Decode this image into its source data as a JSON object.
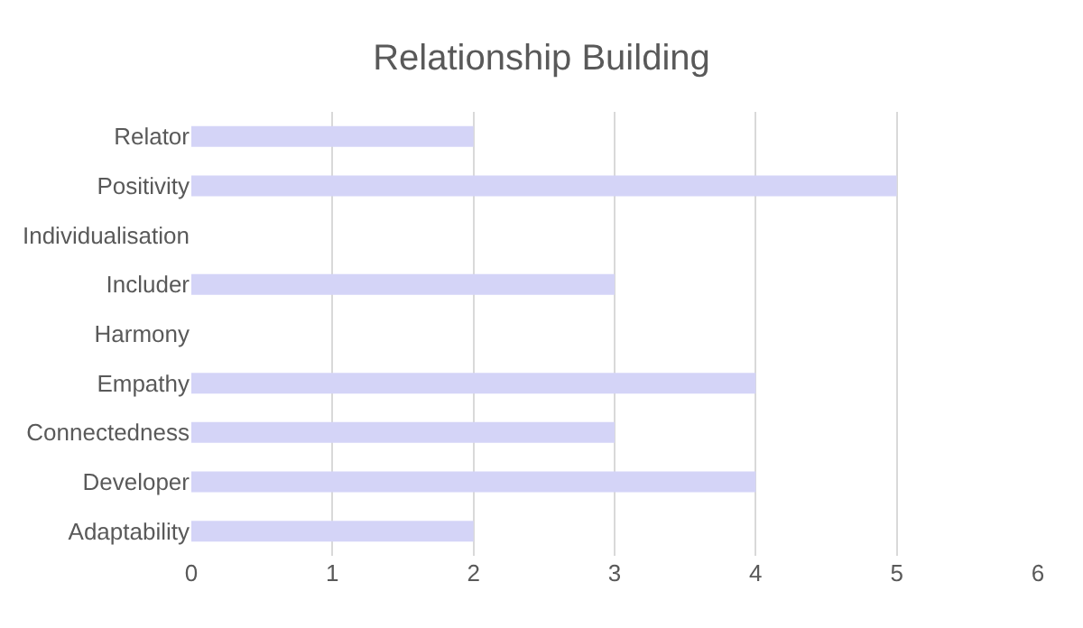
{
  "chart_data": {
    "type": "bar",
    "orientation": "horizontal",
    "title": "Relationship Building",
    "categories": [
      "Relator",
      "Positivity",
      "Individualisation",
      "Includer",
      "Harmony",
      "Empathy",
      "Connectedness",
      "Developer",
      "Adaptability"
    ],
    "values": [
      2,
      5,
      0,
      3,
      0,
      4,
      3,
      4,
      2
    ],
    "color": "#d4d4f7",
    "xlim": [
      0,
      6
    ],
    "xticks": [
      0,
      1,
      2,
      3,
      4,
      5,
      6
    ],
    "grid": "x",
    "legend": false
  }
}
